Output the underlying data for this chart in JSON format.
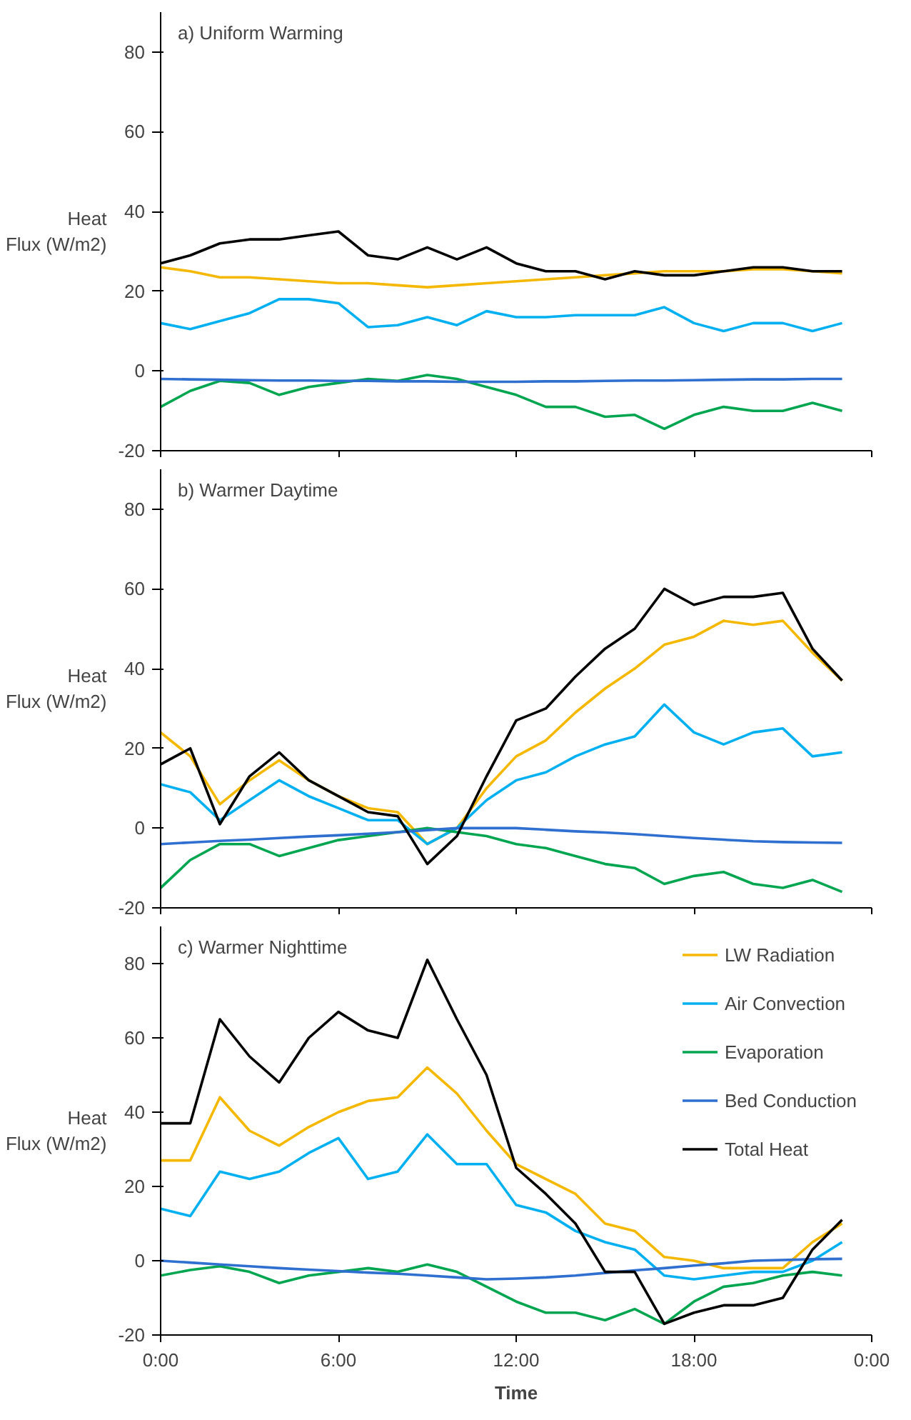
{
  "chart_data": [
    {
      "type": "line",
      "title": "a) Uniform Warming",
      "ylabel": "Heat Flux (W/m2)",
      "x": [
        0,
        1,
        2,
        3,
        4,
        5,
        6,
        7,
        8,
        9,
        10,
        11,
        12,
        13,
        14,
        15,
        16,
        17,
        18,
        19,
        20,
        21,
        22,
        23
      ],
      "xlim": [
        0,
        24
      ],
      "xticks": [
        {
          "value": 0,
          "label": null
        },
        {
          "value": 6,
          "label": null
        },
        {
          "value": 12,
          "label": null
        },
        {
          "value": 18,
          "label": null
        },
        {
          "value": 24,
          "label": null
        }
      ],
      "ylim": [
        -20,
        90
      ],
      "yticks": [
        -20,
        0,
        20,
        40,
        60,
        80
      ],
      "tick_labels": "y",
      "grid": false,
      "series": [
        {
          "color": "#f5b800",
          "values": [
            26,
            25,
            23.5,
            23.5,
            23,
            22.5,
            22,
            22,
            21.5,
            21,
            21.5,
            22,
            22.5,
            23,
            23.5,
            24,
            24.5,
            25,
            25,
            25,
            25.5,
            25.5,
            25,
            24.5
          ]
        },
        {
          "color": "#00b0f0",
          "values": [
            12,
            10.5,
            12.5,
            14.5,
            18,
            18,
            17,
            11,
            11.5,
            13.5,
            11.5,
            15,
            13.5,
            13.5,
            14,
            14,
            14,
            16,
            12,
            10,
            12,
            12,
            10,
            12
          ]
        },
        {
          "color": "#00a550",
          "values": [
            -9,
            -5,
            -2.5,
            -3,
            -6,
            -4,
            -3,
            -2,
            -2.5,
            -1,
            -2,
            -4,
            -6,
            -9,
            -9,
            -11.5,
            -11,
            -14.5,
            -11,
            -9,
            -10,
            -10,
            -8,
            -10
          ]
        },
        {
          "color": "#2e6fd0",
          "values": [
            -2,
            -2.1,
            -2.2,
            -2.3,
            -2.4,
            -2.4,
            -2.5,
            -2.5,
            -2.6,
            -2.6,
            -2.7,
            -2.7,
            -2.7,
            -2.6,
            -2.6,
            -2.5,
            -2.4,
            -2.4,
            -2.3,
            -2.2,
            -2.1,
            -2.1,
            -2,
            -2
          ]
        },
        {
          "color": "#000000",
          "values": [
            27,
            29,
            32,
            33,
            33,
            34,
            35,
            29,
            28,
            31,
            28,
            31,
            27,
            25,
            25,
            23,
            25,
            24,
            24,
            25,
            26,
            26,
            25,
            25
          ]
        }
      ]
    },
    {
      "type": "line",
      "title": "b) Warmer Daytime",
      "ylabel": "Heat Flux (W/m2)",
      "x": [
        0,
        1,
        2,
        3,
        4,
        5,
        6,
        7,
        8,
        9,
        10,
        11,
        12,
        13,
        14,
        15,
        16,
        17,
        18,
        19,
        20,
        21,
        22,
        23
      ],
      "xlim": [
        0,
        24
      ],
      "xticks": [
        {
          "value": 0,
          "label": null
        },
        {
          "value": 6,
          "label": null
        },
        {
          "value": 12,
          "label": null
        },
        {
          "value": 18,
          "label": null
        },
        {
          "value": 24,
          "label": null
        }
      ],
      "ylim": [
        -20,
        90
      ],
      "yticks": [
        -20,
        0,
        20,
        40,
        60,
        80
      ],
      "tick_labels": "y",
      "grid": false,
      "series": [
        {
          "color": "#f5b800",
          "values": [
            24,
            18,
            6,
            12,
            17,
            12,
            8,
            5,
            4,
            -4,
            0,
            10,
            18,
            22,
            29,
            35,
            40,
            46,
            48,
            52,
            51,
            52,
            44,
            37
          ]
        },
        {
          "color": "#00b0f0",
          "values": [
            11,
            9,
            2,
            7,
            12,
            8,
            5,
            2,
            2,
            -4,
            0,
            7,
            12,
            14,
            18,
            21,
            23,
            31,
            24,
            21,
            24,
            25,
            18,
            19
          ]
        },
        {
          "color": "#00a550",
          "values": [
            -15,
            -8,
            -4,
            -4,
            -7,
            -5,
            -3,
            -2,
            -1,
            0,
            -1,
            -2,
            -4,
            -5,
            -7,
            -9,
            -10,
            -14,
            -12,
            -11,
            -14,
            -15,
            -13,
            -16
          ]
        },
        {
          "color": "#2e6fd0",
          "values": [
            -4,
            -3.6,
            -3.2,
            -2.9,
            -2.5,
            -2.1,
            -1.8,
            -1.4,
            -1,
            -0.5,
            0,
            0,
            0,
            -0.4,
            -0.8,
            -1.1,
            -1.5,
            -2,
            -2.5,
            -2.9,
            -3.3,
            -3.5,
            -3.6,
            -3.7
          ]
        },
        {
          "color": "#000000",
          "values": [
            16,
            20,
            1,
            13,
            19,
            12,
            8,
            4,
            3,
            -9,
            -2,
            13,
            27,
            30,
            38,
            45,
            50,
            60,
            56,
            58,
            58,
            59,
            45,
            37
          ]
        }
      ]
    },
    {
      "type": "line",
      "title": "c) Warmer Nighttime",
      "xlabel": "Time",
      "ylabel": "Heat Flux (W/m2)",
      "x": [
        0,
        1,
        2,
        3,
        4,
        5,
        6,
        7,
        8,
        9,
        10,
        11,
        12,
        13,
        14,
        15,
        16,
        17,
        18,
        19,
        20,
        21,
        22,
        23
      ],
      "xlim": [
        0,
        24
      ],
      "xticks": [
        {
          "value": 0,
          "label": "0:00"
        },
        {
          "value": 6,
          "label": "6:00"
        },
        {
          "value": 12,
          "label": "12:00"
        },
        {
          "value": 18,
          "label": "18:00"
        },
        {
          "value": 24,
          "label": "0:00"
        }
      ],
      "ylim": [
        -20,
        90
      ],
      "yticks": [
        -20,
        0,
        20,
        40,
        60,
        80
      ],
      "grid": false,
      "legend": "top right",
      "series": [
        {
          "name": "LW Radiation",
          "color": "#f5b800",
          "values": [
            27,
            27,
            44,
            35,
            31,
            36,
            40,
            43,
            44,
            52,
            45,
            35,
            26,
            22,
            18,
            10,
            8,
            1,
            0,
            -2,
            -2,
            -2,
            5,
            10
          ]
        },
        {
          "name": "Air Convection",
          "color": "#00b0f0",
          "values": [
            14,
            12,
            24,
            22,
            24,
            29,
            33,
            22,
            24,
            34,
            26,
            26,
            15,
            13,
            8,
            5,
            3,
            -4,
            -5,
            -4,
            -3,
            -3,
            0,
            5
          ]
        },
        {
          "name": "Evaporation",
          "color": "#00a550",
          "values": [
            -4,
            -2.5,
            -1.5,
            -3,
            -6,
            -4,
            -3,
            -2,
            -3,
            -1,
            -3,
            -7,
            -11,
            -14,
            -14,
            -16,
            -13,
            -17,
            -11,
            -7,
            -6,
            -4,
            -3,
            -4
          ]
        },
        {
          "name": "Bed Conduction",
          "color": "#2e6fd0",
          "values": [
            0,
            -0.5,
            -1,
            -1.5,
            -2,
            -2.4,
            -2.8,
            -3.2,
            -3.5,
            -4,
            -4.5,
            -5,
            -4.8,
            -4.5,
            -4,
            -3.3,
            -2.6,
            -2,
            -1.3,
            -0.7,
            0,
            0.2,
            0.4,
            0.5
          ]
        },
        {
          "name": "Total Heat",
          "color": "#000000",
          "values": [
            37,
            37,
            65,
            55,
            48,
            60,
            67,
            62,
            60,
            81,
            65,
            50,
            25,
            18,
            10,
            -3,
            -3,
            -17,
            -14,
            -12,
            -12,
            -10,
            3,
            11
          ]
        }
      ]
    }
  ]
}
